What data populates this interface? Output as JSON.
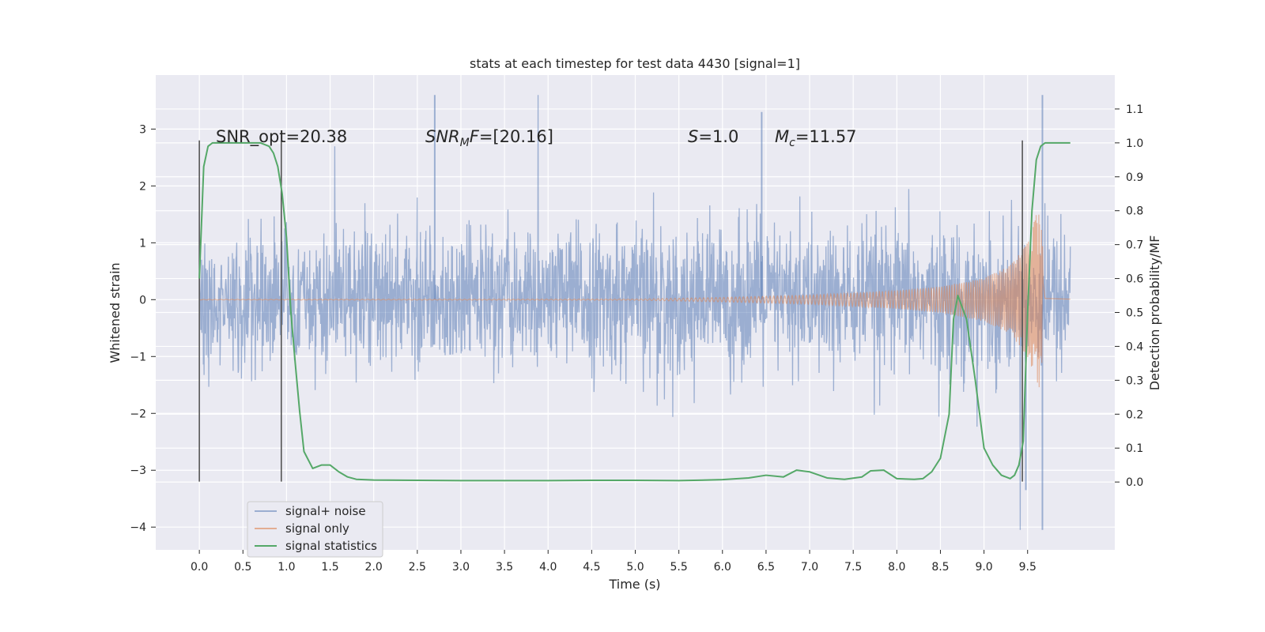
{
  "chart_data": {
    "type": "line",
    "title": "stats at each timestep for test data 4430 [signal=1]",
    "xlabel": "Time (s)",
    "ylabel_left": "Whitened strain",
    "ylabel_right": "Detection probability/MF",
    "xlim": [
      -0.5,
      10.5
    ],
    "ylim_left": [
      -4.4,
      3.95
    ],
    "ylim_right": [
      -0.2,
      1.2
    ],
    "xticks": [
      0.0,
      0.5,
      1.0,
      1.5,
      2.0,
      2.5,
      3.0,
      3.5,
      4.0,
      4.5,
      5.0,
      5.5,
      6.0,
      6.5,
      7.0,
      7.5,
      8.0,
      8.5,
      9.0,
      9.5
    ],
    "xtick_labels": [
      "0.0",
      "0.5",
      "1.0",
      "1.5",
      "2.0",
      "2.5",
      "3.0",
      "3.5",
      "4.0",
      "4.5",
      "5.0",
      "5.5",
      "6.0",
      "6.5",
      "7.0",
      "7.5",
      "8.0",
      "8.5",
      "9.0",
      "9.5"
    ],
    "yticks_left": [
      -4,
      -3,
      -2,
      -1,
      0,
      1,
      2,
      3
    ],
    "ytick_labels_left": [
      "−4",
      "−3",
      "−2",
      "−1",
      "0",
      "1",
      "2",
      "3"
    ],
    "yticks_right": [
      0.0,
      0.1,
      0.2,
      0.3,
      0.4,
      0.5,
      0.6,
      0.7,
      0.8,
      0.9,
      1.0,
      1.1
    ],
    "ytick_labels_right": [
      "0.0",
      "0.1",
      "0.2",
      "0.3",
      "0.4",
      "0.5",
      "0.6",
      "0.7",
      "0.8",
      "0.9",
      "1.0",
      "1.1"
    ],
    "grid": true,
    "legend_position": "lower-left",
    "annotations": [
      {
        "text": "SNR_opt=20.38",
        "x": 0.2,
        "y": 2.9
      },
      {
        "text": "SNRMF=[20.16]",
        "x": 2.6,
        "y": 2.9
      },
      {
        "text": "S=1.0",
        "x": 5.6,
        "y": 2.9
      },
      {
        "text": "Mc=11.57",
        "x": 6.6,
        "y": 2.9
      }
    ],
    "vertical_markers": [
      {
        "x": 0.0,
        "y_from": -3.2,
        "y_to": 2.8
      },
      {
        "x": 0.94,
        "y_from": -3.2,
        "y_to": 2.8
      },
      {
        "x": 9.44,
        "y_from": -3.2,
        "y_to": 2.8
      }
    ],
    "series": [
      {
        "name": "signal+ noise",
        "axis": "left",
        "color": "#4c72b0",
        "description_type": "noisy strain time series",
        "x_range": [
          0.0,
          9.99
        ],
        "typical_band": [
          -1.5,
          1.6
        ],
        "max": 3.6,
        "min": -4.05
      },
      {
        "name": "signal only",
        "axis": "left",
        "color": "#dd8452",
        "chirp_envelope": {
          "x": [
            0.0,
            5.0,
            6.0,
            7.0,
            8.0,
            8.5,
            9.0,
            9.3,
            9.5,
            9.6,
            9.65,
            9.7,
            9.99
          ],
          "amplitude": [
            0.005,
            0.01,
            0.04,
            0.08,
            0.16,
            0.23,
            0.38,
            0.6,
            1.0,
            1.5,
            1.6,
            0.05,
            0.02
          ]
        }
      },
      {
        "name": "signal statistics",
        "axis": "right",
        "color": "#55a868",
        "x": [
          0.0,
          0.05,
          0.1,
          0.15,
          0.2,
          0.3,
          0.4,
          0.5,
          0.6,
          0.7,
          0.8,
          0.85,
          0.9,
          0.95,
          1.0,
          1.05,
          1.1,
          1.15,
          1.2,
          1.3,
          1.4,
          1.5,
          1.6,
          1.7,
          1.8,
          2.0,
          2.5,
          3.0,
          3.5,
          4.0,
          4.5,
          5.0,
          5.5,
          6.0,
          6.3,
          6.5,
          6.7,
          6.85,
          7.0,
          7.2,
          7.4,
          7.6,
          7.7,
          7.85,
          8.0,
          8.2,
          8.3,
          8.4,
          8.5,
          8.6,
          8.65,
          8.7,
          8.8,
          8.9,
          9.0,
          9.1,
          9.2,
          9.3,
          9.35,
          9.4,
          9.45,
          9.5,
          9.55,
          9.6,
          9.65,
          9.7,
          9.8,
          9.9,
          9.99
        ],
        "y": [
          0.6,
          0.93,
          0.99,
          1.0,
          1.0,
          1.0,
          1.0,
          1.0,
          1.0,
          1.0,
          0.99,
          0.97,
          0.93,
          0.85,
          0.72,
          0.5,
          0.35,
          0.21,
          0.09,
          0.04,
          0.05,
          0.05,
          0.03,
          0.015,
          0.008,
          0.006,
          0.005,
          0.004,
          0.004,
          0.004,
          0.005,
          0.005,
          0.004,
          0.007,
          0.012,
          0.02,
          0.015,
          0.035,
          0.03,
          0.012,
          0.008,
          0.015,
          0.033,
          0.035,
          0.01,
          0.008,
          0.01,
          0.03,
          0.07,
          0.2,
          0.48,
          0.55,
          0.48,
          0.3,
          0.1,
          0.05,
          0.02,
          0.01,
          0.02,
          0.05,
          0.12,
          0.5,
          0.8,
          0.95,
          0.99,
          1.0,
          1.0,
          1.0,
          1.0
        ]
      }
    ]
  }
}
